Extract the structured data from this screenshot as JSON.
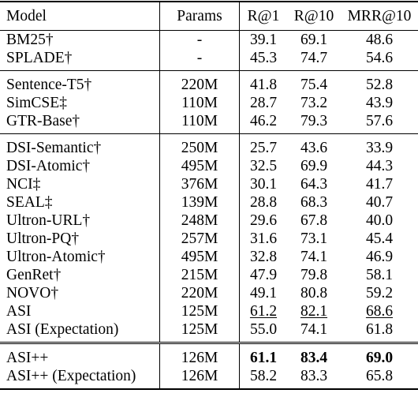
{
  "header": {
    "model": "Model",
    "params": "Params",
    "r1": "R@1",
    "r10": "R@10",
    "mrr": "MRR@10"
  },
  "groups": [
    {
      "rows": [
        {
          "model": "BM25†",
          "params": "-",
          "r1": "39.1",
          "r10": "69.1",
          "mrr": "48.6"
        },
        {
          "model": "SPLADE†",
          "params": "-",
          "r1": "45.3",
          "r10": "74.7",
          "mrr": "54.6"
        }
      ]
    },
    {
      "rows": [
        {
          "model": "Sentence-T5†",
          "params": "220M",
          "r1": "41.8",
          "r10": "75.4",
          "mrr": "52.8"
        },
        {
          "model": "SimCSE‡",
          "params": "110M",
          "r1": "28.7",
          "r10": "73.2",
          "mrr": "43.9"
        },
        {
          "model": "GTR-Base†",
          "params": "110M",
          "r1": "46.2",
          "r10": "79.3",
          "mrr": "57.6"
        }
      ]
    },
    {
      "rows": [
        {
          "model": "DSI-Semantic†",
          "params": "250M",
          "r1": "25.7",
          "r10": "43.6",
          "mrr": "33.9"
        },
        {
          "model": "DSI-Atomic†",
          "params": "495M",
          "r1": "32.5",
          "r10": "69.9",
          "mrr": "44.3"
        },
        {
          "model": "NCI‡",
          "params": "376M",
          "r1": "30.1",
          "r10": "64.3",
          "mrr": "41.7"
        },
        {
          "model": "SEAL‡",
          "params": "139M",
          "r1": "28.8",
          "r10": "68.3",
          "mrr": "40.7"
        },
        {
          "model": "Ultron-URL†",
          "params": "248M",
          "r1": "29.6",
          "r10": "67.8",
          "mrr": "40.0"
        },
        {
          "model": "Ultron-PQ†",
          "params": "257M",
          "r1": "31.6",
          "r10": "73.1",
          "mrr": "45.4"
        },
        {
          "model": "Ultron-Atomic†",
          "params": "495M",
          "r1": "32.8",
          "r10": "74.1",
          "mrr": "46.9"
        },
        {
          "model": "GenRet†",
          "params": "215M",
          "r1": "47.9",
          "r10": "79.8",
          "mrr": "58.1"
        },
        {
          "model": "NOVO†",
          "params": "220M",
          "r1": "49.1",
          "r10": "80.8",
          "mrr": "59.2"
        },
        {
          "model": "ASI",
          "params": "125M",
          "r1": "61.2",
          "r10": "82.1",
          "mrr": "68.6",
          "underline": true
        },
        {
          "model": "ASI (Expectation)",
          "params": "125M",
          "r1": "55.0",
          "r10": "74.1",
          "mrr": "61.8"
        }
      ]
    },
    {
      "rows": [
        {
          "model": "ASI++",
          "params": "126M",
          "r1": "61.1",
          "r10": "83.4",
          "mrr": "69.0",
          "bold": true
        },
        {
          "model": "ASI++ (Expectation)",
          "params": "126M",
          "r1": "58.2",
          "r10": "83.3",
          "mrr": "65.8"
        }
      ]
    }
  ]
}
